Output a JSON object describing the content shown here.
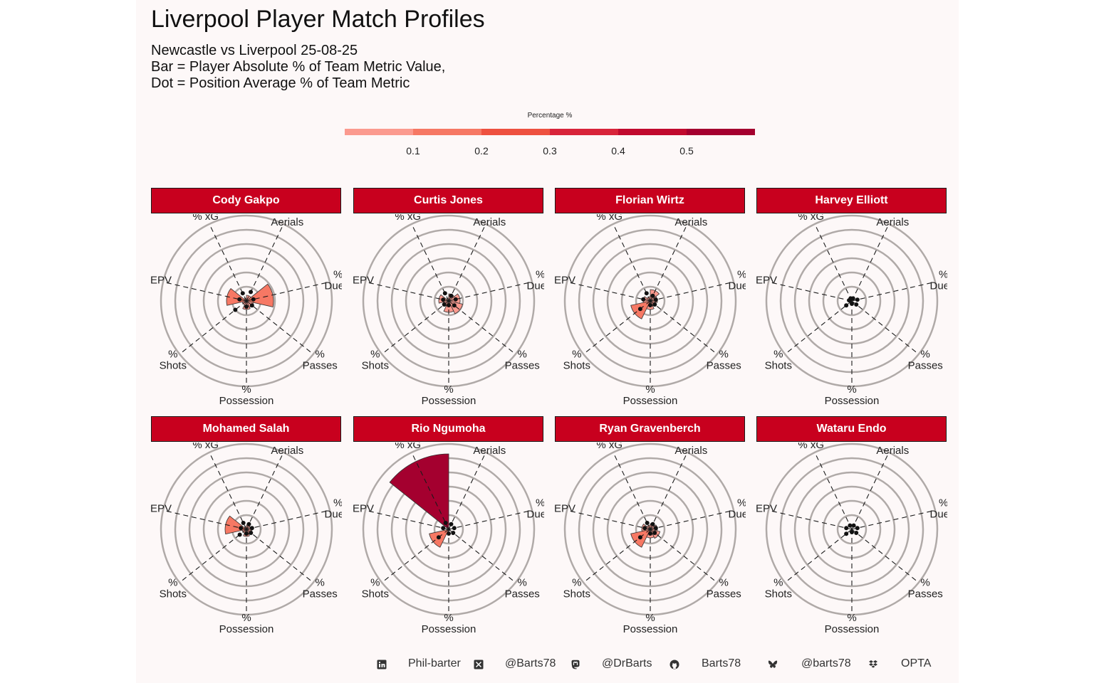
{
  "title": "Liverpool Player Match Profiles",
  "subtitle": [
    "Newcastle vs Liverpool 25-08-25",
    "Bar = Player Absolute % of Team Metric Value,",
    "Dot = Position Average % of Team Metric"
  ],
  "legend": {
    "title": "Percentage %",
    "ticks": [
      "0.1",
      "0.2",
      "0.3",
      "0.4",
      "0.5"
    ],
    "colors": [
      "#fb9a8f",
      "#f67864",
      "#ee5140",
      "#d8243a",
      "#c10a2e",
      "#a4002f"
    ]
  },
  "chart_data": {
    "type": "radial-bar",
    "metrics": [
      "% Aerials",
      "% Duels",
      "% Passes",
      "% Possession",
      "% Shots",
      "% EPV",
      "% xG"
    ],
    "metric_labels": [
      [
        "%",
        "Aerials"
      ],
      [
        "%",
        "Duels"
      ],
      [
        "%",
        "Passes"
      ],
      [
        "%",
        "Possession"
      ],
      [
        "%",
        "Shots"
      ],
      [
        "% EPV"
      ],
      [
        "% xG"
      ]
    ],
    "players": [
      {
        "name": "Cody Gakpo",
        "values": [
          0.04,
          0.19,
          0.05,
          0.06,
          0.03,
          0.14,
          0.02
        ],
        "avg": [
          0.07,
          0.05,
          0.05,
          0.04,
          0.1,
          0.05,
          0.06
        ]
      },
      {
        "name": "Curtis Jones",
        "values": [
          0.05,
          0.08,
          0.1,
          0.08,
          0.04,
          0.07,
          0.02
        ],
        "avg": [
          0.04,
          0.05,
          0.05,
          0.03,
          0.04,
          0.04,
          0.06
        ]
      },
      {
        "name": "Florian Wirtz",
        "values": [
          0.08,
          0.05,
          0.04,
          0.06,
          0.14,
          0.05,
          0.03
        ],
        "avg": [
          0.04,
          0.04,
          0.04,
          0.03,
          0.09,
          0.05,
          0.06
        ]
      },
      {
        "name": "Harvey Elliott",
        "values": [
          0.0,
          0.0,
          0.0,
          0.0,
          0.0,
          0.0,
          0.0
        ],
        "avg": [
          0.02,
          0.04,
          0.04,
          0.02,
          0.05,
          0.02,
          0.02
        ]
      },
      {
        "name": "Mohamed Salah",
        "values": [
          0.03,
          0.03,
          0.04,
          0.05,
          0.03,
          0.15,
          0.02
        ],
        "avg": [
          0.04,
          0.04,
          0.04,
          0.03,
          0.06,
          0.04,
          0.05
        ]
      },
      {
        "name": "Rio Ngumoha",
        "values": [
          0.01,
          0.01,
          0.01,
          0.01,
          0.14,
          0.01,
          0.53
        ],
        "avg": [
          0.04,
          0.04,
          0.04,
          0.03,
          0.09,
          0.04,
          0.05
        ]
      },
      {
        "name": "Ryan Gravenberch",
        "values": [
          0.04,
          0.05,
          0.07,
          0.06,
          0.14,
          0.06,
          0.03
        ],
        "avg": [
          0.04,
          0.04,
          0.04,
          0.03,
          0.09,
          0.04,
          0.05
        ]
      },
      {
        "name": "Wataru Endo",
        "values": [
          0.0,
          0.0,
          0.0,
          0.0,
          0.0,
          0.0,
          0.0
        ],
        "avg": [
          0.03,
          0.04,
          0.04,
          0.02,
          0.05,
          0.04,
          0.03
        ]
      }
    ],
    "rmax": 0.6,
    "grid_rings": [
      0.1,
      0.2,
      0.3,
      0.4,
      0.5,
      0.6
    ]
  },
  "footer": [
    {
      "icon": "linkedin-icon",
      "label": "Phil-barter"
    },
    {
      "icon": "x-icon",
      "label": "@Barts78"
    },
    {
      "icon": "mastodon-icon",
      "label": "@DrBarts"
    },
    {
      "icon": "github-icon",
      "label": "Barts78"
    },
    {
      "icon": "bluesky-icon",
      "label": "@barts78"
    },
    {
      "icon": "dropbox-icon",
      "label": "OPTA"
    }
  ]
}
